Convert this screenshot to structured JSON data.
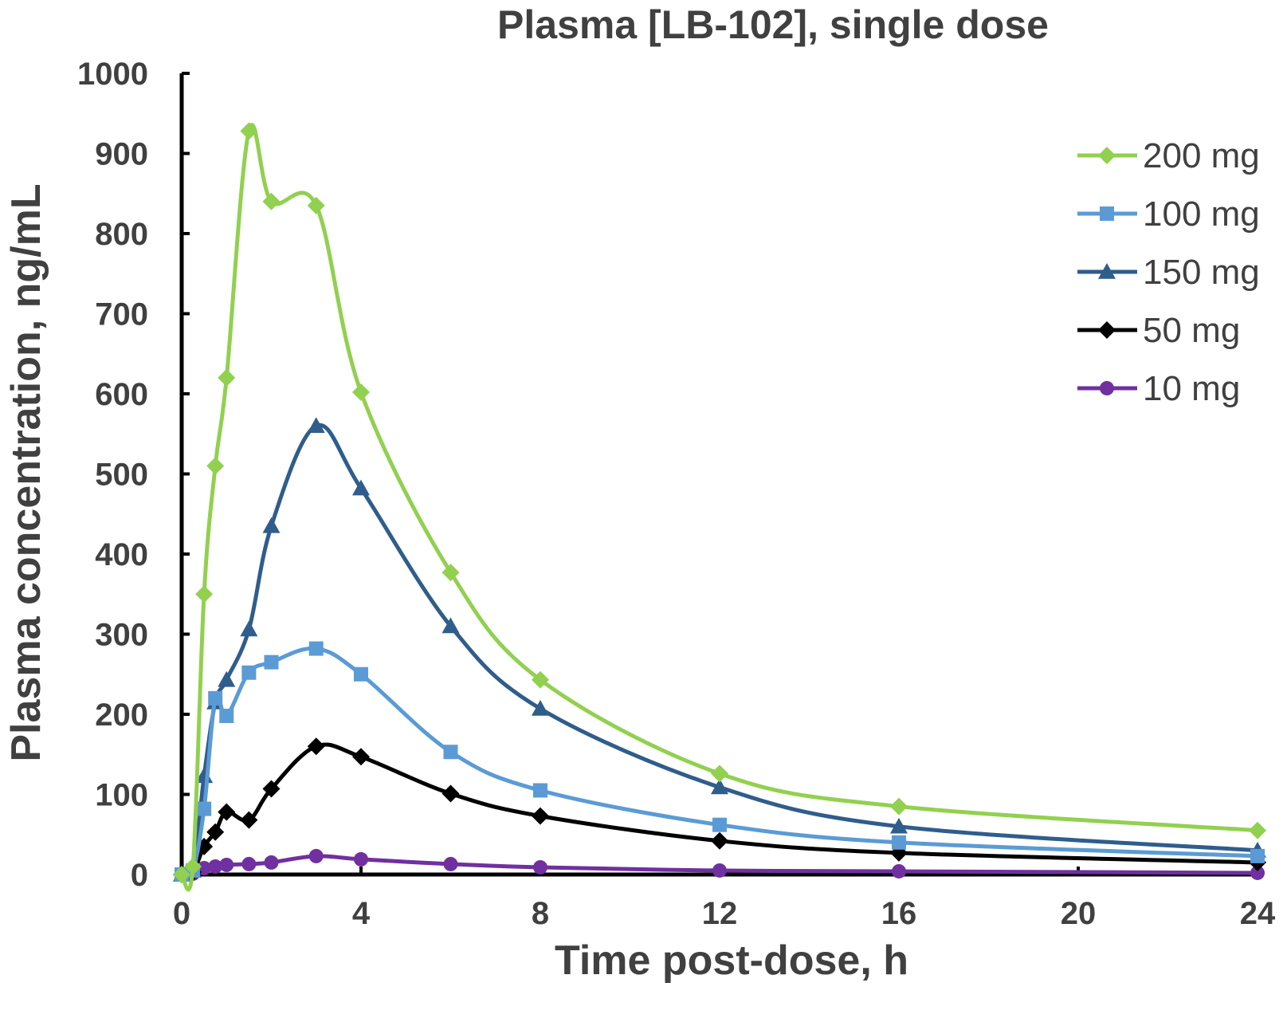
{
  "chart_data": {
    "type": "line",
    "title": "Plasma [LB-102], single dose",
    "xlabel": "Time post-dose, h",
    "ylabel": "Plasma concentration, ng/mL",
    "xlim": [
      0,
      24
    ],
    "ylim": [
      0,
      1000
    ],
    "xticks": [
      0,
      4,
      8,
      12,
      16,
      20,
      24
    ],
    "yticks": [
      0,
      100,
      200,
      300,
      400,
      500,
      600,
      700,
      800,
      900,
      1000
    ],
    "grid": false,
    "legend_position": "top-right",
    "series": [
      {
        "name": "200 mg",
        "color": "#92d050",
        "marker": "diamond",
        "points": [
          [
            0,
            0
          ],
          [
            0.25,
            10
          ],
          [
            0.5,
            350
          ],
          [
            0.75,
            510
          ],
          [
            1,
            620
          ],
          [
            1.5,
            928
          ],
          [
            2,
            840
          ],
          [
            3,
            835
          ],
          [
            4,
            602
          ],
          [
            6,
            377
          ],
          [
            8,
            243
          ],
          [
            12,
            126
          ],
          [
            16,
            85
          ],
          [
            24,
            55
          ]
        ]
      },
      {
        "name": "100 mg",
        "color": "#5b9bd5",
        "marker": "square",
        "points": [
          [
            0,
            0
          ],
          [
            0.25,
            5
          ],
          [
            0.5,
            82
          ],
          [
            0.75,
            220
          ],
          [
            1,
            198
          ],
          [
            1.5,
            252
          ],
          [
            2,
            265
          ],
          [
            3,
            282
          ],
          [
            4,
            250
          ],
          [
            6,
            153
          ],
          [
            8,
            105
          ],
          [
            12,
            62
          ],
          [
            16,
            40
          ],
          [
            24,
            23
          ]
        ]
      },
      {
        "name": "150 mg",
        "color": "#2f5d8c",
        "marker": "triangle",
        "points": [
          [
            0,
            0
          ],
          [
            0.25,
            5
          ],
          [
            0.5,
            123
          ],
          [
            0.75,
            215
          ],
          [
            1,
            243
          ],
          [
            1.5,
            306
          ],
          [
            2,
            435
          ],
          [
            3,
            560
          ],
          [
            4,
            482
          ],
          [
            6,
            310
          ],
          [
            8,
            207
          ],
          [
            12,
            109
          ],
          [
            16,
            60
          ],
          [
            24,
            30
          ]
        ]
      },
      {
        "name": "50 mg",
        "color": "#000000",
        "marker": "diamond",
        "points": [
          [
            0,
            0
          ],
          [
            0.25,
            3
          ],
          [
            0.5,
            35
          ],
          [
            0.75,
            53
          ],
          [
            1,
            78
          ],
          [
            1.5,
            68
          ],
          [
            2,
            107
          ],
          [
            3,
            160
          ],
          [
            4,
            147
          ],
          [
            6,
            101
          ],
          [
            8,
            73
          ],
          [
            12,
            42
          ],
          [
            16,
            27
          ],
          [
            24,
            15
          ]
        ]
      },
      {
        "name": "10 mg",
        "color": "#7030a0",
        "marker": "circle",
        "points": [
          [
            0,
            0
          ],
          [
            0.25,
            1
          ],
          [
            0.5,
            8
          ],
          [
            0.75,
            10
          ],
          [
            1,
            12
          ],
          [
            1.5,
            13
          ],
          [
            2,
            15
          ],
          [
            3,
            23
          ],
          [
            4,
            19
          ],
          [
            6,
            13
          ],
          [
            8,
            9
          ],
          [
            12,
            5
          ],
          [
            16,
            4
          ],
          [
            24,
            2
          ]
        ]
      }
    ]
  }
}
